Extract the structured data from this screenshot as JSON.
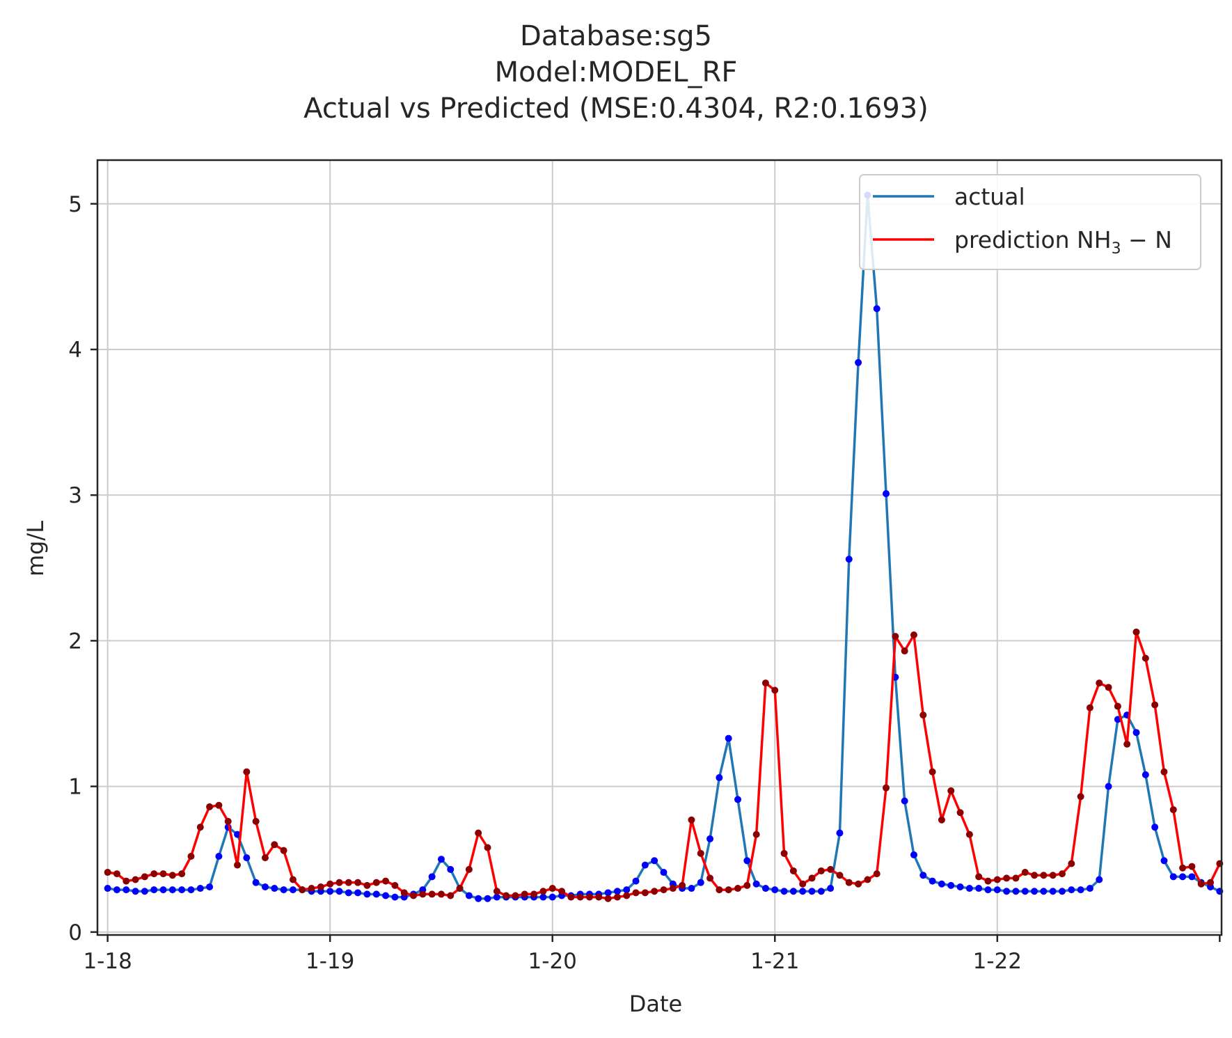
{
  "chart_data": {
    "type": "line",
    "title_lines": [
      "Database:sg5",
      "Model:MODEL_RF",
      "Actual vs Predicted (MSE:0.4304, R2:0.1693)"
    ],
    "xlabel": "Date",
    "ylabel": "mg/L",
    "x_ticks": [
      {
        "value": 0,
        "label": "1-18"
      },
      {
        "value": 24,
        "label": "1-19"
      },
      {
        "value": 48,
        "label": "1-20"
      },
      {
        "value": 72,
        "label": "1-21"
      },
      {
        "value": 96,
        "label": "1-22"
      }
    ],
    "y_ticks": [
      0,
      1,
      2,
      3,
      4,
      5
    ],
    "xlim": [
      -1.1,
      120.2
    ],
    "ylim": [
      -0.02,
      5.3
    ],
    "grid": true,
    "legend_position": "top-right",
    "x_step_hours": 1,
    "series": [
      {
        "name": "actual",
        "legend_label": "actual",
        "color": "#1f77b4",
        "marker_color": "#0000ff",
        "values": [
          0.3,
          0.29,
          0.29,
          0.28,
          0.28,
          0.29,
          0.29,
          0.29,
          0.29,
          0.29,
          0.3,
          0.31,
          0.52,
          0.72,
          0.67,
          0.51,
          0.34,
          0.31,
          0.3,
          0.29,
          0.29,
          0.29,
          0.28,
          0.28,
          0.28,
          0.28,
          0.27,
          0.27,
          0.26,
          0.26,
          0.25,
          0.24,
          0.24,
          0.26,
          0.29,
          0.38,
          0.5,
          0.43,
          0.3,
          0.25,
          0.23,
          0.23,
          0.24,
          0.24,
          0.24,
          0.24,
          0.24,
          0.24,
          0.24,
          0.25,
          0.25,
          0.26,
          0.26,
          0.26,
          0.27,
          0.28,
          0.29,
          0.35,
          0.46,
          0.49,
          0.41,
          0.33,
          0.3,
          0.3,
          0.34,
          0.64,
          1.06,
          1.33,
          0.91,
          0.49,
          0.33,
          0.3,
          0.29,
          0.28,
          0.28,
          0.28,
          0.28,
          0.28,
          0.3,
          0.68,
          2.56,
          3.91,
          5.06,
          4.28,
          3.01,
          1.75,
          0.9,
          0.53,
          0.39,
          0.35,
          0.33,
          0.32,
          0.31,
          0.3,
          0.3,
          0.29,
          0.29,
          0.28,
          0.28,
          0.28,
          0.28,
          0.28,
          0.28,
          0.28,
          0.29,
          0.29,
          0.3,
          0.36,
          1.0,
          1.46,
          1.49,
          1.37,
          1.08,
          0.72,
          0.49,
          0.38,
          0.38,
          0.38,
          0.34,
          0.31,
          0.28
        ]
      },
      {
        "name": "prediction",
        "legend_label": "prediction NH",
        "legend_sub": "3",
        "legend_suffix": " − N",
        "color": "#ff0000",
        "marker_color": "#8b0000",
        "values": [
          0.41,
          0.4,
          0.35,
          0.36,
          0.38,
          0.4,
          0.4,
          0.39,
          0.4,
          0.52,
          0.72,
          0.86,
          0.87,
          0.76,
          0.46,
          1.1,
          0.76,
          0.51,
          0.6,
          0.56,
          0.36,
          0.29,
          0.3,
          0.31,
          0.33,
          0.34,
          0.34,
          0.34,
          0.32,
          0.34,
          0.35,
          0.32,
          0.27,
          0.25,
          0.26,
          0.26,
          0.26,
          0.25,
          0.3,
          0.43,
          0.68,
          0.58,
          0.28,
          0.25,
          0.25,
          0.26,
          0.26,
          0.28,
          0.3,
          0.28,
          0.24,
          0.24,
          0.24,
          0.24,
          0.23,
          0.24,
          0.25,
          0.27,
          0.27,
          0.28,
          0.29,
          0.3,
          0.32,
          0.77,
          0.54,
          0.37,
          0.29,
          0.29,
          0.3,
          0.32,
          0.67,
          1.71,
          1.66,
          0.54,
          0.42,
          0.33,
          0.37,
          0.42,
          0.43,
          0.39,
          0.34,
          0.33,
          0.36,
          0.4,
          0.99,
          2.03,
          1.93,
          2.04,
          1.49,
          1.1,
          0.77,
          0.97,
          0.82,
          0.67,
          0.38,
          0.35,
          0.36,
          0.37,
          0.37,
          0.41,
          0.39,
          0.39,
          0.39,
          0.4,
          0.47,
          0.93,
          1.54,
          1.71,
          1.68,
          1.55,
          1.29,
          2.06,
          1.88,
          1.56,
          1.1,
          0.84,
          0.44,
          0.45,
          0.33,
          0.34,
          0.47
        ]
      }
    ]
  }
}
